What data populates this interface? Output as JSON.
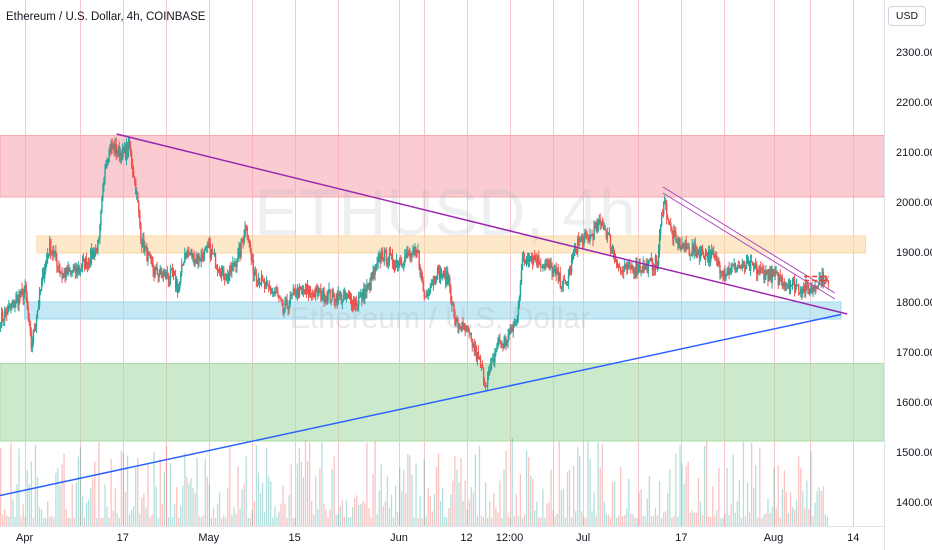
{
  "header": {
    "title": "Ethereum / U.S. Dollar, 4h, COINBASE",
    "currency": "USD"
  },
  "watermark": {
    "symbol": "ETHUSD, 4h",
    "name": "Ethereum / U.S. Dollar"
  },
  "chart_data": {
    "type": "candlestick",
    "symbol": "ETHUSD",
    "timeframe": "4h",
    "exchange": "COINBASE",
    "ylim": [
      1350,
      2400
    ],
    "y_ticks": [
      1400,
      1500,
      1600,
      1700,
      1800,
      1900,
      2000,
      2100,
      2200,
      2300
    ],
    "y_tick_labels": [
      "1400.00",
      "1500.00",
      "1600.00",
      "1700.00",
      "1800.00",
      "1900.00",
      "2000.00",
      "2100.00",
      "2200.00",
      "2300.00"
    ],
    "x_range": [
      "2023-03-28",
      "2023-08-19"
    ],
    "x_ticks": [
      {
        "date": "2023-04-01",
        "label": "Apr"
      },
      {
        "date": "2023-04-17",
        "label": "17"
      },
      {
        "date": "2023-05-01",
        "label": "May"
      },
      {
        "date": "2023-05-15",
        "label": "15"
      },
      {
        "date": "2023-06-01",
        "label": "Jun"
      },
      {
        "date": "2023-06-12",
        "label": "12"
      },
      {
        "date": "2023-06-19",
        "label": "12:00"
      },
      {
        "date": "2023-07-01",
        "label": "Jul"
      },
      {
        "date": "2023-07-17",
        "label": "17"
      },
      {
        "date": "2023-08-01",
        "label": "Aug"
      },
      {
        "date": "2023-08-14",
        "label": "14"
      }
    ],
    "vertical_grid_dates": [
      "2023-04-01",
      "2023-04-10",
      "2023-04-17",
      "2023-04-24",
      "2023-05-01",
      "2023-05-08",
      "2023-05-15",
      "2023-05-22",
      "2023-06-01",
      "2023-06-05",
      "2023-06-12",
      "2023-06-19",
      "2023-06-26",
      "2023-07-01",
      "2023-07-10",
      "2023-07-17",
      "2023-07-24",
      "2023-08-01",
      "2023-08-07",
      "2023-08-14"
    ],
    "zones": [
      {
        "label": "resistance-zone",
        "from": 2010,
        "to": 2133,
        "start": "2023-03-28",
        "end": "2023-08-19",
        "color": "#f7a8b1"
      },
      {
        "label": "mid-zone",
        "from": 1898,
        "to": 1932,
        "start": "2023-04-03",
        "end": "2023-08-16",
        "color": "#fcd9a6"
      },
      {
        "label": "support-zone",
        "from": 1766,
        "to": 1800,
        "start": "2023-04-01",
        "end": "2023-08-12",
        "color": "#9ed9ef"
      },
      {
        "label": "demand-zone",
        "from": 1522,
        "to": 1677,
        "start": "2023-03-28",
        "end": "2023-08-19",
        "color": "#a9dca8"
      }
    ],
    "trendlines": [
      {
        "label": "descending-resistance",
        "start": [
          "2023-04-16",
          2136
        ],
        "end": [
          "2023-08-13",
          1776
        ],
        "color": "#9c27b0",
        "width": 1.5
      },
      {
        "label": "ascending-support",
        "start": [
          "2023-03-28",
          1413
        ],
        "end": [
          "2023-08-12",
          1775
        ],
        "color": "#2962ff",
        "width": 1.5
      },
      {
        "label": "channel-top",
        "start": [
          "2023-07-14",
          2030
        ],
        "end": [
          "2023-08-11",
          1818
        ],
        "color": "#ab47bc",
        "width": 1
      },
      {
        "label": "channel-bottom",
        "start": [
          "2023-07-14",
          2018
        ],
        "end": [
          "2023-08-11",
          1806
        ],
        "color": "#ab47bc",
        "width": 1
      }
    ],
    "dashed_levels": [
      {
        "value": 1851,
        "start": "2023-08-06",
        "end": "2023-08-10",
        "color": "#e53935"
      },
      {
        "value": 1843,
        "start": "2023-08-06",
        "end": "2023-08-10",
        "color": "#e53935"
      }
    ],
    "price_path": [
      [
        "2023-03-28",
        1765
      ],
      [
        "2023-03-30",
        1795
      ],
      [
        "2023-04-01",
        1822
      ],
      [
        "2023-04-02",
        1710
      ],
      [
        "2023-04-04",
        1860
      ],
      [
        "2023-04-05",
        1915
      ],
      [
        "2023-04-07",
        1855
      ],
      [
        "2023-04-09",
        1860
      ],
      [
        "2023-04-11",
        1880
      ],
      [
        "2023-04-13",
        1915
      ],
      [
        "2023-04-14",
        2080
      ],
      [
        "2023-04-15",
        2110
      ],
      [
        "2023-04-17",
        2095
      ],
      [
        "2023-04-18",
        2110
      ],
      [
        "2023-04-19",
        2030
      ],
      [
        "2023-04-20",
        1920
      ],
      [
        "2023-04-22",
        1860
      ],
      [
        "2023-04-25",
        1850
      ],
      [
        "2023-04-26",
        1825
      ],
      [
        "2023-04-27",
        1900
      ],
      [
        "2023-04-29",
        1885
      ],
      [
        "2023-05-01",
        1905
      ],
      [
        "2023-05-03",
        1860
      ],
      [
        "2023-05-04",
        1850
      ],
      [
        "2023-05-06",
        1900
      ],
      [
        "2023-05-07",
        1960
      ],
      [
        "2023-05-08",
        1870
      ],
      [
        "2023-05-10",
        1830
      ],
      [
        "2023-05-12",
        1815
      ],
      [
        "2023-05-13",
        1780
      ],
      [
        "2023-05-15",
        1820
      ],
      [
        "2023-05-17",
        1820
      ],
      [
        "2023-05-20",
        1815
      ],
      [
        "2023-05-22",
        1810
      ],
      [
        "2023-05-25",
        1800
      ],
      [
        "2023-05-27",
        1830
      ],
      [
        "2023-05-29",
        1895
      ],
      [
        "2023-05-31",
        1880
      ],
      [
        "2023-06-02",
        1890
      ],
      [
        "2023-06-04",
        1895
      ],
      [
        "2023-06-05",
        1810
      ],
      [
        "2023-06-07",
        1860
      ],
      [
        "2023-06-09",
        1845
      ],
      [
        "2023-06-10",
        1760
      ],
      [
        "2023-06-12",
        1740
      ],
      [
        "2023-06-14",
        1680
      ],
      [
        "2023-06-15",
        1640
      ],
      [
        "2023-06-16",
        1670
      ],
      [
        "2023-06-17",
        1720
      ],
      [
        "2023-06-18",
        1715
      ],
      [
        "2023-06-20",
        1760
      ],
      [
        "2023-06-21",
        1880
      ],
      [
        "2023-06-22",
        1895
      ],
      [
        "2023-06-24",
        1880
      ],
      [
        "2023-06-26",
        1860
      ],
      [
        "2023-06-28",
        1830
      ],
      [
        "2023-06-30",
        1920
      ],
      [
        "2023-07-02",
        1930
      ],
      [
        "2023-07-04",
        1960
      ],
      [
        "2023-07-05",
        1930
      ],
      [
        "2023-07-07",
        1860
      ],
      [
        "2023-07-09",
        1870
      ],
      [
        "2023-07-11",
        1870
      ],
      [
        "2023-07-13",
        1880
      ],
      [
        "2023-07-14",
        2010
      ],
      [
        "2023-07-15",
        1950
      ],
      [
        "2023-07-16",
        1920
      ],
      [
        "2023-07-18",
        1905
      ],
      [
        "2023-07-20",
        1900
      ],
      [
        "2023-07-22",
        1890
      ],
      [
        "2023-07-24",
        1860
      ],
      [
        "2023-07-26",
        1870
      ],
      [
        "2023-07-28",
        1870
      ],
      [
        "2023-07-30",
        1860
      ],
      [
        "2023-08-01",
        1850
      ],
      [
        "2023-08-03",
        1840
      ],
      [
        "2023-08-05",
        1830
      ],
      [
        "2023-08-07",
        1825
      ],
      [
        "2023-08-08",
        1840
      ],
      [
        "2023-08-09",
        1850
      ],
      [
        "2023-08-10",
        1830
      ]
    ],
    "volume": {
      "present": true,
      "axis": "none"
    },
    "grid": {
      "vertical": true,
      "horizontal": false
    }
  }
}
